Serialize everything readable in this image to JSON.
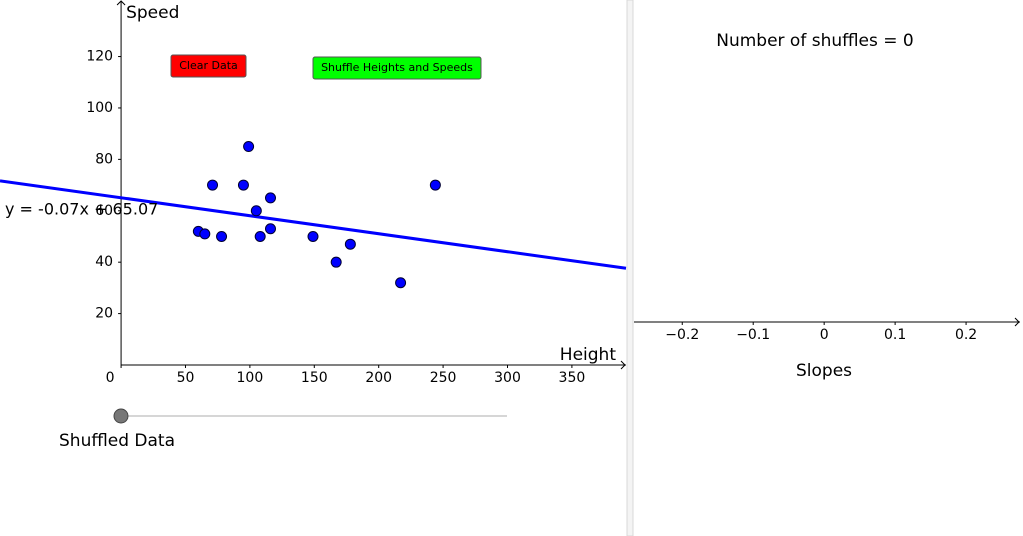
{
  "chart_data": [
    {
      "type": "scatter",
      "xlabel": "Height",
      "ylabel": "Speed",
      "x": [
        60,
        65,
        71,
        78,
        95,
        99,
        105,
        108,
        116,
        116,
        149,
        167,
        178,
        217,
        244
      ],
      "y": [
        52,
        51,
        70,
        50,
        70,
        85,
        60,
        50,
        65,
        53,
        50,
        40,
        47,
        32,
        70
      ],
      "color": "#0000ff",
      "xlim": [
        -94,
        392
      ],
      "ylim": [
        0,
        142
      ],
      "xticks": [
        0,
        50,
        100,
        150,
        200,
        250,
        300,
        350
      ],
      "yticks": [
        20,
        40,
        60,
        80,
        100,
        120
      ],
      "regression": {
        "label": "y = -0.07x + 65.07",
        "slope": -0.07,
        "intercept": 65.07,
        "color": "#0000ff"
      }
    },
    {
      "type": "numberline",
      "title": "Number of shuffles = 0",
      "xlabel": "Slopes",
      "xlim": [
        -0.268,
        0.276
      ],
      "xticks": [
        {
          "value": -0.2,
          "label": "−0.2"
        },
        {
          "value": -0.1,
          "label": "−0.1"
        },
        0,
        0.1,
        0.2
      ]
    }
  ],
  "buttons": [
    {
      "label": "Clear Data",
      "color": "#ff0000"
    },
    {
      "label": "Shuffle Heights and Speeds",
      "color": "#00ff00"
    }
  ],
  "slider": {
    "label": "Shuffled Data"
  }
}
